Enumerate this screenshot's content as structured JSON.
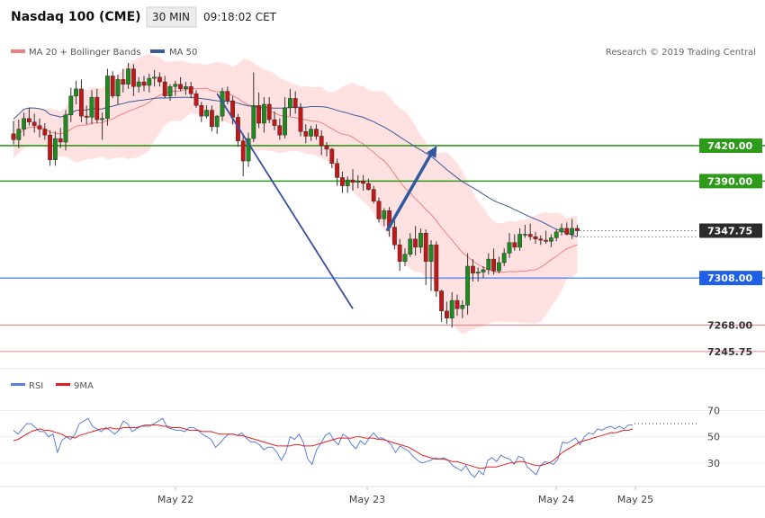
{
  "header": {
    "title": "Nasdaq 100 (CME)",
    "timeframe": "30 MIN",
    "time": "09:18:02 CET"
  },
  "legend": {
    "bollinger_label": "MA 20 + Bollinger Bands",
    "bollinger_color": "#f08080",
    "ma50_label": "MA 50",
    "ma50_color": "#3b5b9a"
  },
  "copyright": "Research © 2019 Trading Central",
  "rsi_legend": {
    "rsi_label": "RSI",
    "rsi_color": "#5b7fd6",
    "ma_label": "9MA",
    "ma_color": "#e02020"
  },
  "chart_data": {
    "type": "candlestick",
    "price_axis": {
      "range": [
        7235,
        7490
      ]
    },
    "x_tick_labels": [
      "May 22",
      "May 23",
      "May 24",
      "May 25"
    ],
    "last_price": "7347.75",
    "levels": [
      {
        "label": "7420.00",
        "value": 7420,
        "type": "resistance",
        "color": "#2e9a1a"
      },
      {
        "label": "7390.00",
        "value": 7390,
        "type": "resistance",
        "color": "#2e9a1a"
      },
      {
        "label": "7308.00",
        "value": 7308,
        "type": "pivot",
        "color": "#1f5fe8"
      },
      {
        "label": "7268.00",
        "value": 7268,
        "type": "support",
        "color": "#ee7777"
      },
      {
        "label": "7245.75",
        "value": 7245.75,
        "type": "support",
        "color": "#ee8888"
      }
    ],
    "trendline": {
      "from": [
        39,
        7464
      ],
      "to": [
        65,
        7282
      ],
      "color": "#3b4fa0"
    },
    "projection_arrow": {
      "from": [
        71,
        7349
      ],
      "to": [
        78,
        7420
      ],
      "color": "#2f5aa0"
    },
    "candles": [
      [
        7430,
        7441,
        7421,
        7425
      ],
      [
        7425,
        7442,
        7418,
        7434
      ],
      [
        7434,
        7448,
        7428,
        7443
      ],
      [
        7443,
        7452,
        7437,
        7440
      ],
      [
        7440,
        7447,
        7431,
        7437
      ],
      [
        7437,
        7443,
        7427,
        7434
      ],
      [
        7434,
        7439,
        7425,
        7429
      ],
      [
        7429,
        7433,
        7403,
        7408
      ],
      [
        7408,
        7432,
        7403,
        7426
      ],
      [
        7426,
        7435,
        7418,
        7423
      ],
      [
        7423,
        7450,
        7416,
        7446
      ],
      [
        7446,
        7469,
        7440,
        7462
      ],
      [
        7462,
        7475,
        7455,
        7468
      ],
      [
        7468,
        7476,
        7440,
        7445
      ],
      [
        7445,
        7454,
        7438,
        7444
      ],
      [
        7444,
        7467,
        7438,
        7461
      ],
      [
        7461,
        7468,
        7439,
        7442
      ],
      [
        7442,
        7448,
        7425,
        7443
      ],
      [
        7443,
        7485,
        7437,
        7479
      ],
      [
        7479,
        7483,
        7460,
        7462
      ],
      [
        7462,
        7480,
        7455,
        7476
      ],
      [
        7476,
        7485,
        7465,
        7472
      ],
      [
        7472,
        7490,
        7468,
        7485
      ],
      [
        7485,
        7489,
        7462,
        7470
      ],
      [
        7470,
        7478,
        7465,
        7474
      ],
      [
        7474,
        7479,
        7466,
        7471
      ],
      [
        7471,
        7481,
        7465,
        7477
      ],
      [
        7477,
        7484,
        7470,
        7478
      ],
      [
        7478,
        7482,
        7470,
        7474
      ],
      [
        7474,
        7479,
        7460,
        7462
      ],
      [
        7462,
        7472,
        7458,
        7470
      ],
      [
        7470,
        7475,
        7462,
        7472
      ],
      [
        7472,
        7478,
        7466,
        7468
      ],
      [
        7468,
        7474,
        7463,
        7470
      ],
      [
        7470,
        7474,
        7460,
        7464
      ],
      [
        7464,
        7467,
        7452,
        7454
      ],
      [
        7454,
        7457,
        7440,
        7445
      ],
      [
        7445,
        7454,
        7443,
        7450
      ],
      [
        7450,
        7454,
        7432,
        7436
      ],
      [
        7436,
        7446,
        7430,
        7445
      ],
      [
        7445,
        7469,
        7441,
        7466
      ],
      [
        7466,
        7470,
        7455,
        7458
      ],
      [
        7458,
        7462,
        7438,
        7444
      ],
      [
        7444,
        7447,
        7419,
        7424
      ],
      [
        7424,
        7429,
        7394,
        7407
      ],
      [
        7407,
        7431,
        7402,
        7426
      ],
      [
        7426,
        7482,
        7423,
        7454
      ],
      [
        7454,
        7465,
        7435,
        7439
      ],
      [
        7439,
        7461,
        7431,
        7455
      ],
      [
        7455,
        7461,
        7439,
        7442
      ],
      [
        7442,
        7449,
        7433,
        7437
      ],
      [
        7437,
        7443,
        7425,
        7429
      ],
      [
        7429,
        7461,
        7426,
        7452
      ],
      [
        7452,
        7468,
        7445,
        7460
      ],
      [
        7460,
        7466,
        7447,
        7452
      ],
      [
        7452,
        7456,
        7428,
        7432
      ],
      [
        7432,
        7438,
        7422,
        7428
      ],
      [
        7428,
        7437,
        7424,
        7434
      ],
      [
        7434,
        7438,
        7425,
        7428
      ],
      [
        7428,
        7433,
        7412,
        7420
      ],
      [
        7420,
        7423,
        7411,
        7417
      ],
      [
        7417,
        7418,
        7401,
        7405
      ],
      [
        7405,
        7409,
        7386,
        7393
      ],
      [
        7393,
        7398,
        7380,
        7386
      ],
      [
        7386,
        7394,
        7380,
        7391
      ],
      [
        7391,
        7400,
        7382,
        7389
      ],
      [
        7389,
        7395,
        7384,
        7390
      ],
      [
        7390,
        7395,
        7382,
        7388
      ],
      [
        7388,
        7392,
        7382,
        7383
      ],
      [
        7383,
        7386,
        7371,
        7373
      ],
      [
        7373,
        7376,
        7355,
        7358
      ],
      [
        7358,
        7367,
        7352,
        7365
      ],
      [
        7365,
        7368,
        7343,
        7351
      ],
      [
        7351,
        7357,
        7332,
        7336
      ],
      [
        7336,
        7341,
        7314,
        7322
      ],
      [
        7322,
        7333,
        7318,
        7328
      ],
      [
        7328,
        7346,
        7326,
        7341
      ],
      [
        7341,
        7352,
        7327,
        7334
      ],
      [
        7334,
        7350,
        7329,
        7346
      ],
      [
        7346,
        7349,
        7302,
        7322
      ],
      [
        7322,
        7340,
        7297,
        7336
      ],
      [
        7336,
        7339,
        7292,
        7297
      ],
      [
        7297,
        7298,
        7271,
        7280
      ],
      [
        7280,
        7288,
        7269,
        7274
      ],
      [
        7274,
        7296,
        7266,
        7289
      ],
      [
        7289,
        7294,
        7276,
        7282
      ],
      [
        7282,
        7289,
        7274,
        7285
      ],
      [
        7285,
        7329,
        7277,
        7318
      ],
      [
        7318,
        7324,
        7305,
        7312
      ],
      [
        7312,
        7317,
        7305,
        7313
      ],
      [
        7313,
        7318,
        7308,
        7315
      ],
      [
        7315,
        7329,
        7311,
        7324
      ],
      [
        7324,
        7333,
        7311,
        7314
      ],
      [
        7314,
        7326,
        7312,
        7321
      ],
      [
        7321,
        7333,
        7318,
        7329
      ],
      [
        7329,
        7346,
        7325,
        7338
      ],
      [
        7338,
        7345,
        7331,
        7334
      ],
      [
        7334,
        7350,
        7331,
        7345
      ],
      [
        7345,
        7353,
        7342,
        7345
      ],
      [
        7345,
        7354,
        7340,
        7343
      ],
      [
        7343,
        7347,
        7337,
        7341
      ],
      [
        7341,
        7344,
        7336,
        7340
      ],
      [
        7340,
        7348,
        7337,
        7339
      ],
      [
        7339,
        7345,
        7334,
        7342
      ],
      [
        7342,
        7349,
        7339,
        7347
      ],
      [
        7347,
        7354,
        7344,
        7350
      ],
      [
        7350,
        7355,
        7344,
        7345
      ],
      [
        7345,
        7358,
        7341,
        7350
      ],
      [
        7350,
        7353,
        7343,
        7348
      ]
    ],
    "rsi": {
      "axis_range": [
        12,
        80
      ],
      "tick_labels": [
        "70",
        "50",
        "30"
      ],
      "tick_values": [
        70,
        50,
        30
      ],
      "reference_line": 60,
      "values": [
        55,
        52,
        56,
        60,
        60,
        57,
        54,
        54,
        50,
        52,
        38,
        47,
        50,
        48,
        52,
        60,
        62,
        64,
        58,
        56,
        54,
        57,
        55,
        52,
        55,
        62,
        60,
        54,
        56,
        58,
        58,
        58,
        60,
        62,
        64,
        57,
        56,
        55,
        55,
        54,
        57,
        57,
        55,
        52,
        50,
        48,
        42,
        45,
        49,
        52,
        52,
        51,
        53,
        49,
        46,
        46,
        44,
        40,
        42,
        42,
        38,
        32,
        38,
        50,
        48,
        52,
        46,
        33,
        29,
        40,
        45,
        51,
        53,
        47,
        44,
        52,
        50,
        44,
        41,
        47,
        44,
        49,
        53,
        49,
        49,
        47,
        44,
        38,
        43,
        41,
        39,
        35,
        32,
        30,
        31,
        32,
        34,
        33,
        34,
        32,
        28,
        26,
        24,
        28,
        22,
        19,
        24,
        21,
        32,
        34,
        31,
        36,
        34,
        33,
        29,
        35,
        34,
        27,
        24,
        21,
        28,
        31,
        30,
        29,
        33,
        46,
        45,
        47,
        49,
        44,
        50,
        53,
        52,
        56,
        55,
        57,
        58,
        56,
        58,
        56,
        59,
        59
      ],
      "ma_values": [
        47,
        48,
        50,
        52,
        54,
        55,
        56,
        55,
        55,
        54,
        53,
        52,
        50,
        50,
        49,
        51,
        52,
        53,
        54,
        55,
        56,
        56,
        57,
        56,
        56,
        57,
        57,
        57,
        57,
        58,
        59,
        59,
        59,
        59,
        58,
        58,
        57,
        57,
        57,
        56,
        55,
        55,
        55,
        54,
        54,
        54,
        53,
        52,
        52,
        52,
        52,
        51,
        51,
        50,
        49,
        48,
        47,
        46,
        45,
        44,
        43,
        43,
        43,
        43,
        44,
        44,
        43,
        43,
        43,
        44,
        45,
        46,
        47,
        48,
        49,
        49,
        49,
        49,
        50,
        50,
        49,
        49,
        49,
        48,
        48,
        47,
        46,
        45,
        44,
        43,
        42,
        40,
        38,
        36,
        35,
        34,
        33,
        33,
        33,
        32,
        31,
        31,
        30,
        29,
        28,
        27,
        26,
        26,
        27,
        27,
        27,
        28,
        29,
        30,
        30,
        31,
        31,
        30,
        29,
        28,
        28,
        29,
        30,
        32,
        35,
        38,
        40,
        42,
        44,
        46,
        47,
        48,
        49,
        50,
        51,
        52,
        53,
        53,
        54,
        55,
        55,
        56
      ]
    }
  }
}
